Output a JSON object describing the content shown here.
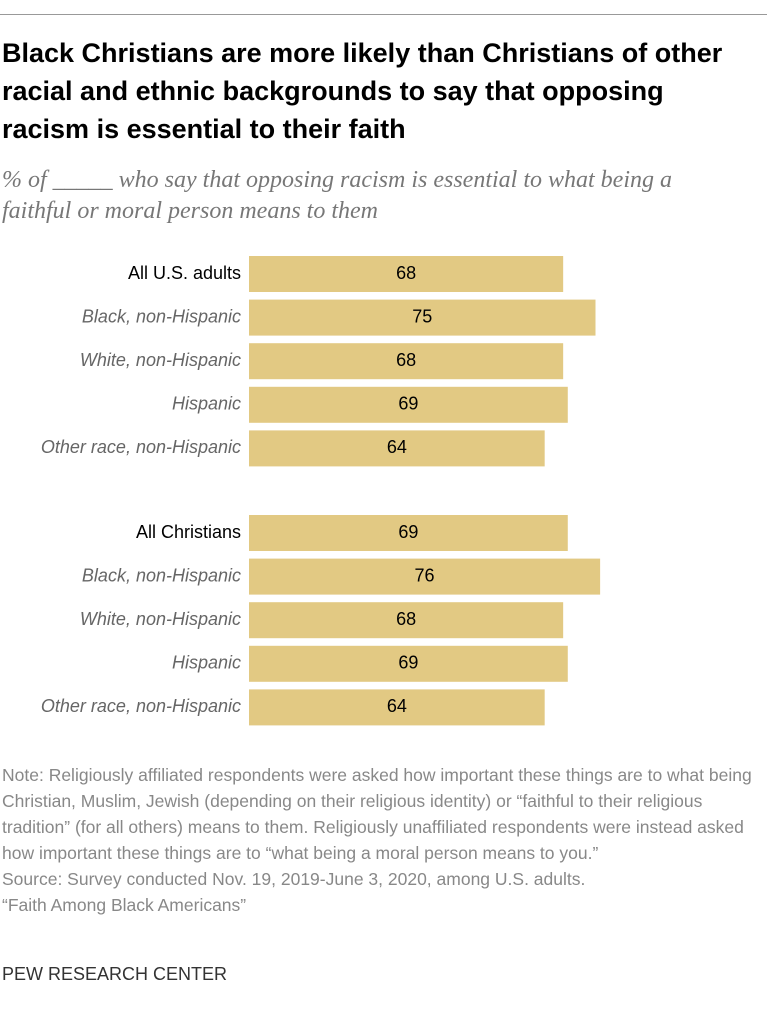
{
  "header": {
    "title": "Black Christians are more likely than Christians of other racial and ethnic backgrounds to say that opposing racism is essential to their faith",
    "subtitle": "% of _____ who say that opposing racism is essential to what being a faithful or moral person means to them"
  },
  "chart_data": [
    {
      "type": "bar",
      "orientation": "horizontal",
      "color": "#e2c983",
      "categories": [
        "All U.S. adults",
        "Black, non-Hispanic",
        "White, non-Hispanic",
        "Hispanic",
        "Other race, non-Hispanic"
      ],
      "values": [
        68,
        75,
        68,
        69,
        64
      ]
    },
    {
      "type": "bar",
      "orientation": "horizontal",
      "color": "#e2c983",
      "categories": [
        "All Christians",
        "Black, non-Hispanic",
        "White, non-Hispanic",
        "Hispanic",
        "Other race, non-Hispanic"
      ],
      "values": [
        69,
        76,
        68,
        69,
        64
      ]
    }
  ],
  "footer": {
    "note": "Note: Religiously affiliated respondents were asked how important these things are to what being Christian, Muslim, Jewish (depending on their religious identity) or “faithful to their religious tradition” (for all others) means to them. Religiously unaffiliated respondents were instead asked how important these things are to “what being a moral person means to you.”",
    "source": "Source: Survey conducted Nov. 19, 2019-June 3, 2020, among U.S. adults.",
    "report": "“Faith Among Black Americans”",
    "brand": "PEW RESEARCH CENTER"
  }
}
